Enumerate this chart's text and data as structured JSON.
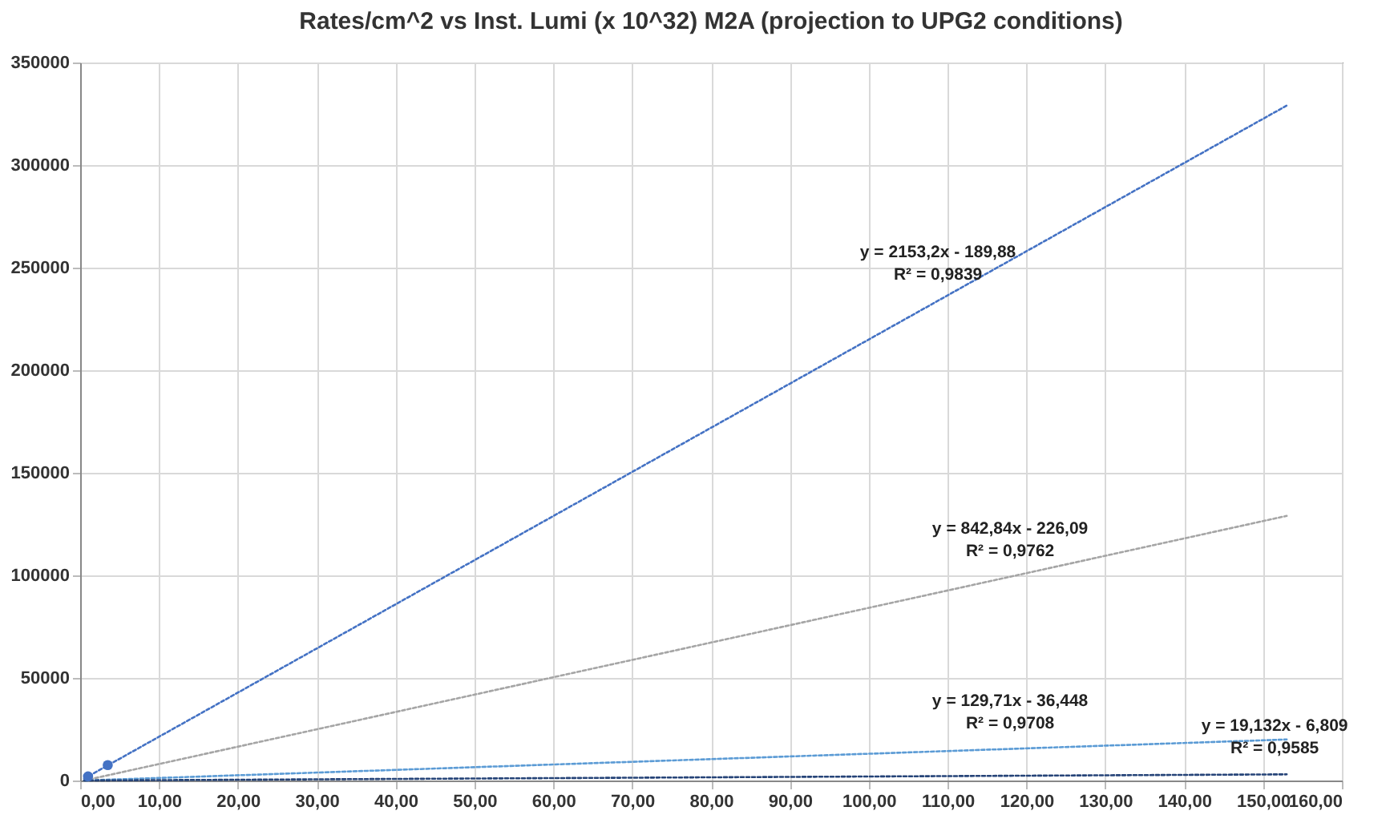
{
  "chart_data": {
    "type": "scatter",
    "title": "Rates/cm^2  vs  Inst. Lumi (x 10^32)   M2A (projection to UPG2 conditions)",
    "xlim": [
      0,
      160
    ],
    "ylim": [
      0,
      350000
    ],
    "xticks": [
      {
        "value": 0,
        "label": "0,00"
      },
      {
        "value": 10,
        "label": "10,00"
      },
      {
        "value": 20,
        "label": "20,00"
      },
      {
        "value": 30,
        "label": "30,00"
      },
      {
        "value": 40,
        "label": "40,00"
      },
      {
        "value": 50,
        "label": "50,00"
      },
      {
        "value": 60,
        "label": "60,00"
      },
      {
        "value": 70,
        "label": "70,00"
      },
      {
        "value": 80,
        "label": "80,00"
      },
      {
        "value": 90,
        "label": "90,00"
      },
      {
        "value": 100,
        "label": "100,00"
      },
      {
        "value": 110,
        "label": "110,00"
      },
      {
        "value": 120,
        "label": "120,00"
      },
      {
        "value": 130,
        "label": "130,00"
      },
      {
        "value": 140,
        "label": "140,00"
      },
      {
        "value": 150,
        "label": "150,00"
      },
      {
        "value": 160,
        "label": "160,00"
      }
    ],
    "yticks": [
      0,
      50000,
      100000,
      150000,
      200000,
      250000,
      300000,
      350000
    ],
    "grid": true,
    "marker": "circle",
    "series": [
      {
        "color": "#4472c4",
        "x": [
          1,
          3.5
        ],
        "values": [
          2000,
          7500
        ]
      },
      {
        "type": "line",
        "color": "#4472c4",
        "line_style": "dotted",
        "marker": "none",
        "x": [
          0.5,
          153
        ],
        "values": [
          900,
          329000
        ]
      },
      {
        "type": "line",
        "color": "#a5a5a5",
        "line_style": "dotted",
        "marker": "none",
        "x": [
          0.5,
          153
        ],
        "values": [
          0,
          129000
        ]
      },
      {
        "type": "line",
        "color": "#5b9bd5",
        "line_style": "dotted",
        "marker": "none",
        "x": [
          0.5,
          153
        ],
        "values": [
          0,
          20000
        ]
      },
      {
        "type": "line",
        "color": "#264478",
        "line_style": "dotted",
        "marker": "none",
        "x": [
          0.5,
          153
        ],
        "values": [
          0,
          3000
        ]
      }
    ],
    "annotations": [
      "y = 2153,2x - 189,88",
      "R² = 0,9839",
      "y = 842,84x - 226,09",
      "R² = 0,9762",
      "y = 129,71x - 36,448",
      "R² = 0,9708",
      "y = 19,132x - 6,809",
      "R² = 0,9585"
    ]
  }
}
